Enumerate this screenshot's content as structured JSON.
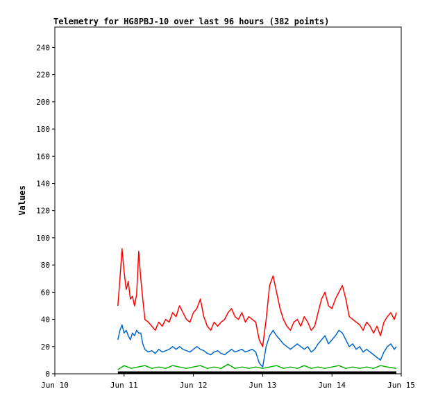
{
  "chart_data": {
    "type": "line",
    "title": "Telemetry for HG8PBJ-10 over last 96 hours (382 points)",
    "xlabel": "",
    "ylabel": "Values",
    "x_ticks": [
      "Jun 10",
      "Jun 11",
      "Jun 12",
      "Jun 13",
      "Jun 14",
      "Jun 15"
    ],
    "xlim_days": [
      10,
      15
    ],
    "ylim": [
      0,
      255
    ],
    "y_ticks": [
      0,
      20,
      40,
      60,
      80,
      100,
      120,
      140,
      160,
      180,
      200,
      220,
      240
    ],
    "grid": false,
    "colors": {
      "red_series": "#ff0000",
      "blue_series": "#0066cc",
      "green_series": "#00b000",
      "black_series": "#000000"
    },
    "series": [
      {
        "color": "#ff0000",
        "points": [
          [
            10.91,
            50
          ],
          [
            10.94,
            70
          ],
          [
            10.97,
            92
          ],
          [
            11.0,
            75
          ],
          [
            11.03,
            62
          ],
          [
            11.06,
            68
          ],
          [
            11.09,
            55
          ],
          [
            11.12,
            57
          ],
          [
            11.15,
            50
          ],
          [
            11.18,
            58
          ],
          [
            11.21,
            90
          ],
          [
            11.24,
            70
          ],
          [
            11.27,
            55
          ],
          [
            11.3,
            40
          ],
          [
            11.35,
            38
          ],
          [
            11.4,
            35
          ],
          [
            11.45,
            32
          ],
          [
            11.5,
            38
          ],
          [
            11.55,
            35
          ],
          [
            11.6,
            40
          ],
          [
            11.65,
            38
          ],
          [
            11.7,
            45
          ],
          [
            11.75,
            42
          ],
          [
            11.8,
            50
          ],
          [
            11.85,
            45
          ],
          [
            11.9,
            40
          ],
          [
            11.95,
            38
          ],
          [
            12.0,
            45
          ],
          [
            12.05,
            48
          ],
          [
            12.1,
            55
          ],
          [
            12.15,
            42
          ],
          [
            12.2,
            35
          ],
          [
            12.25,
            32
          ],
          [
            12.3,
            38
          ],
          [
            12.35,
            35
          ],
          [
            12.4,
            38
          ],
          [
            12.45,
            40
          ],
          [
            12.5,
            45
          ],
          [
            12.55,
            48
          ],
          [
            12.6,
            42
          ],
          [
            12.65,
            40
          ],
          [
            12.7,
            45
          ],
          [
            12.75,
            38
          ],
          [
            12.8,
            42
          ],
          [
            12.85,
            40
          ],
          [
            12.9,
            38
          ],
          [
            12.95,
            25
          ],
          [
            13.0,
            20
          ],
          [
            13.05,
            40
          ],
          [
            13.1,
            65
          ],
          [
            13.15,
            72
          ],
          [
            13.2,
            60
          ],
          [
            13.25,
            48
          ],
          [
            13.3,
            40
          ],
          [
            13.35,
            35
          ],
          [
            13.4,
            32
          ],
          [
            13.45,
            38
          ],
          [
            13.5,
            40
          ],
          [
            13.55,
            35
          ],
          [
            13.6,
            42
          ],
          [
            13.65,
            38
          ],
          [
            13.7,
            32
          ],
          [
            13.75,
            35
          ],
          [
            13.8,
            45
          ],
          [
            13.85,
            55
          ],
          [
            13.9,
            60
          ],
          [
            13.95,
            50
          ],
          [
            14.0,
            48
          ],
          [
            14.05,
            55
          ],
          [
            14.1,
            60
          ],
          [
            14.15,
            65
          ],
          [
            14.2,
            55
          ],
          [
            14.25,
            42
          ],
          [
            14.3,
            40
          ],
          [
            14.35,
            38
          ],
          [
            14.4,
            36
          ],
          [
            14.45,
            32
          ],
          [
            14.5,
            38
          ],
          [
            14.55,
            35
          ],
          [
            14.6,
            30
          ],
          [
            14.65,
            35
          ],
          [
            14.7,
            28
          ],
          [
            14.75,
            38
          ],
          [
            14.8,
            42
          ],
          [
            14.85,
            45
          ],
          [
            14.9,
            40
          ],
          [
            14.93,
            45
          ]
        ]
      },
      {
        "color": "#0066cc",
        "points": [
          [
            10.91,
            25
          ],
          [
            10.94,
            32
          ],
          [
            10.97,
            36
          ],
          [
            11.0,
            30
          ],
          [
            11.03,
            32
          ],
          [
            11.06,
            28
          ],
          [
            11.09,
            25
          ],
          [
            11.12,
            30
          ],
          [
            11.15,
            28
          ],
          [
            11.18,
            32
          ],
          [
            11.21,
            30
          ],
          [
            11.24,
            30
          ],
          [
            11.27,
            22
          ],
          [
            11.3,
            18
          ],
          [
            11.35,
            16
          ],
          [
            11.4,
            17
          ],
          [
            11.45,
            15
          ],
          [
            11.5,
            18
          ],
          [
            11.55,
            16
          ],
          [
            11.6,
            17
          ],
          [
            11.65,
            18
          ],
          [
            11.7,
            20
          ],
          [
            11.75,
            18
          ],
          [
            11.8,
            20
          ],
          [
            11.85,
            18
          ],
          [
            11.9,
            17
          ],
          [
            11.95,
            16
          ],
          [
            12.0,
            18
          ],
          [
            12.05,
            20
          ],
          [
            12.1,
            18
          ],
          [
            12.15,
            17
          ],
          [
            12.2,
            15
          ],
          [
            12.25,
            14
          ],
          [
            12.3,
            16
          ],
          [
            12.35,
            17
          ],
          [
            12.4,
            15
          ],
          [
            12.45,
            14
          ],
          [
            12.5,
            16
          ],
          [
            12.55,
            18
          ],
          [
            12.6,
            16
          ],
          [
            12.65,
            17
          ],
          [
            12.7,
            18
          ],
          [
            12.75,
            16
          ],
          [
            12.8,
            17
          ],
          [
            12.85,
            18
          ],
          [
            12.9,
            16
          ],
          [
            12.95,
            8
          ],
          [
            13.0,
            5
          ],
          [
            13.05,
            20
          ],
          [
            13.1,
            28
          ],
          [
            13.15,
            32
          ],
          [
            13.2,
            28
          ],
          [
            13.25,
            25
          ],
          [
            13.3,
            22
          ],
          [
            13.35,
            20
          ],
          [
            13.4,
            18
          ],
          [
            13.45,
            20
          ],
          [
            13.5,
            22
          ],
          [
            13.55,
            20
          ],
          [
            13.6,
            18
          ],
          [
            13.65,
            20
          ],
          [
            13.7,
            16
          ],
          [
            13.75,
            18
          ],
          [
            13.8,
            22
          ],
          [
            13.85,
            25
          ],
          [
            13.9,
            28
          ],
          [
            13.95,
            22
          ],
          [
            14.0,
            25
          ],
          [
            14.05,
            28
          ],
          [
            14.1,
            32
          ],
          [
            14.15,
            30
          ],
          [
            14.2,
            25
          ],
          [
            14.25,
            20
          ],
          [
            14.3,
            22
          ],
          [
            14.35,
            18
          ],
          [
            14.4,
            20
          ],
          [
            14.45,
            16
          ],
          [
            14.5,
            18
          ],
          [
            14.55,
            16
          ],
          [
            14.6,
            14
          ],
          [
            14.65,
            12
          ],
          [
            14.7,
            10
          ],
          [
            14.75,
            16
          ],
          [
            14.8,
            20
          ],
          [
            14.85,
            22
          ],
          [
            14.9,
            18
          ],
          [
            14.93,
            20
          ]
        ]
      },
      {
        "color": "#00b000",
        "points": [
          [
            10.91,
            3
          ],
          [
            11.0,
            6
          ],
          [
            11.1,
            4
          ],
          [
            11.2,
            5
          ],
          [
            11.3,
            6
          ],
          [
            11.4,
            4
          ],
          [
            11.5,
            5
          ],
          [
            11.6,
            4
          ],
          [
            11.7,
            6
          ],
          [
            11.8,
            5
          ],
          [
            11.9,
            4
          ],
          [
            12.0,
            5
          ],
          [
            12.1,
            6
          ],
          [
            12.2,
            4
          ],
          [
            12.3,
            5
          ],
          [
            12.4,
            4
          ],
          [
            12.5,
            7
          ],
          [
            12.6,
            4
          ],
          [
            12.7,
            5
          ],
          [
            12.8,
            4
          ],
          [
            12.9,
            5
          ],
          [
            13.0,
            4
          ],
          [
            13.1,
            5
          ],
          [
            13.2,
            6
          ],
          [
            13.3,
            4
          ],
          [
            13.4,
            5
          ],
          [
            13.5,
            4
          ],
          [
            13.6,
            6
          ],
          [
            13.7,
            4
          ],
          [
            13.8,
            5
          ],
          [
            13.9,
            4
          ],
          [
            14.0,
            5
          ],
          [
            14.1,
            6
          ],
          [
            14.2,
            4
          ],
          [
            14.3,
            5
          ],
          [
            14.4,
            4
          ],
          [
            14.5,
            5
          ],
          [
            14.6,
            4
          ],
          [
            14.7,
            6
          ],
          [
            14.8,
            5
          ],
          [
            14.93,
            4
          ]
        ]
      },
      {
        "color": "#000000",
        "points": [
          [
            10.91,
            1
          ],
          [
            11.5,
            1
          ],
          [
            12.0,
            1
          ],
          [
            12.5,
            1
          ],
          [
            13.0,
            1
          ],
          [
            13.5,
            1
          ],
          [
            14.0,
            1
          ],
          [
            14.5,
            1
          ],
          [
            14.93,
            1
          ]
        ]
      }
    ]
  }
}
